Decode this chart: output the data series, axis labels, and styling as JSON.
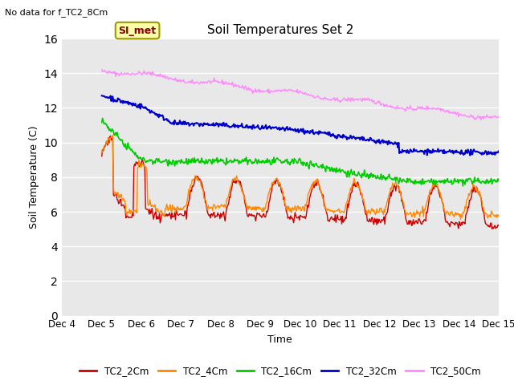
{
  "title": "Soil Temperatures Set 2",
  "subtitle": "No data for f_TC2_8Cm",
  "xlabel": "Time",
  "ylabel": "Soil Temperature (C)",
  "ylim": [
    0,
    16
  ],
  "yticks": [
    0,
    2,
    4,
    6,
    8,
    10,
    12,
    14,
    16
  ],
  "xtick_labels": [
    "Dec 4",
    "Dec 5",
    "Dec 6",
    "Dec 7",
    "Dec 8",
    "Dec 9",
    "Dec 10",
    "Dec 11",
    "Dec 12",
    "Dec 13",
    "Dec 14",
    "Dec 15"
  ],
  "fig_bg_color": "#ffffff",
  "plot_bg_color": "#e8e8e8",
  "legend_entries": [
    "TC2_2Cm",
    "TC2_4Cm",
    "TC2_16Cm",
    "TC2_32Cm",
    "TC2_50Cm"
  ],
  "line_colors": [
    "#cc0000",
    "#ff8800",
    "#00cc00",
    "#0000cc",
    "#ff88ff"
  ],
  "annotation_text": "SI_met",
  "annotation_bg": "#ffffaa",
  "annotation_border": "#999900"
}
